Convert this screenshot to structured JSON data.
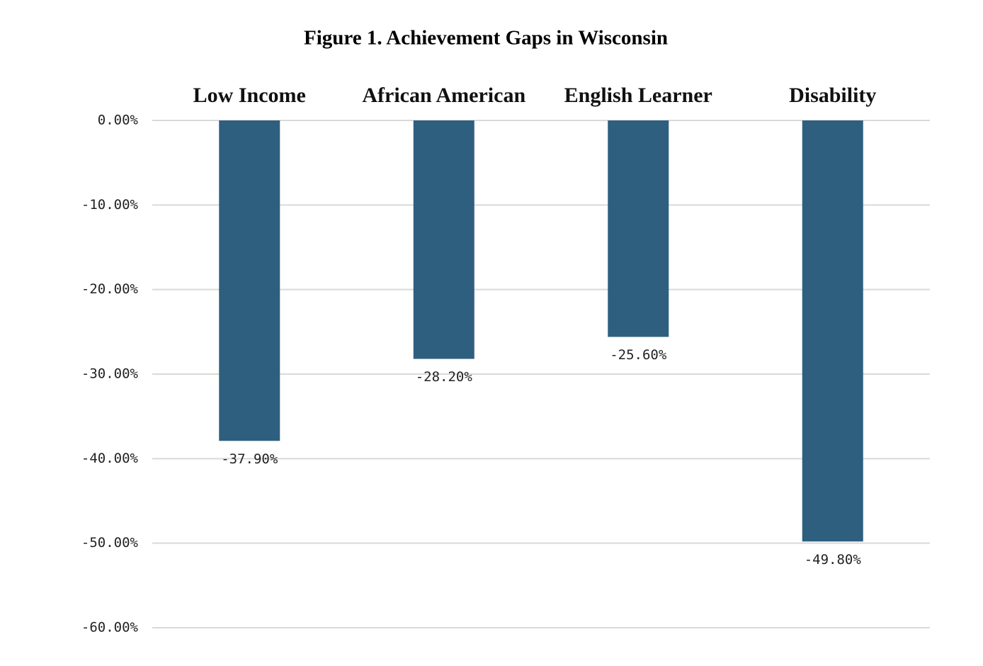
{
  "chart_data": {
    "type": "bar",
    "title": "Figure 1.  Achievement Gaps in Wisconsin",
    "categories": [
      "Low Income",
      "African American",
      "English Learner",
      "Disability"
    ],
    "values": [
      -37.9,
      -28.2,
      -25.6,
      -49.8
    ],
    "value_labels": [
      "-37.90%",
      "-28.20%",
      "-25.60%",
      "-49.80%"
    ],
    "color": "#2e5f7f",
    "ylim": [
      -60,
      0
    ],
    "yticks": [
      {
        "value": 0,
        "label": "0.00%"
      },
      {
        "value": -10,
        "label": "-10.00%"
      },
      {
        "value": -20,
        "label": "-20.00%"
      },
      {
        "value": -30,
        "label": "-30.00%"
      },
      {
        "value": -40,
        "label": "-40.00%"
      },
      {
        "value": -50,
        "label": "-50.00%"
      },
      {
        "value": -60,
        "label": "-60.00%"
      }
    ],
    "grid": true
  }
}
